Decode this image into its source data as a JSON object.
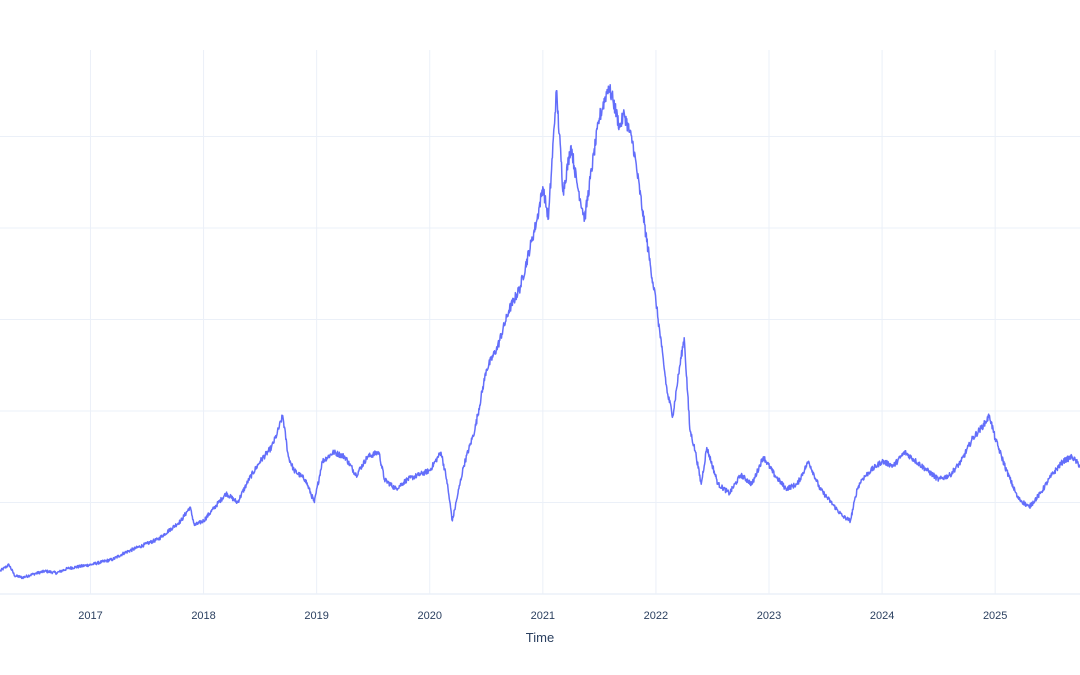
{
  "chart_data": {
    "type": "line",
    "title": "",
    "xlabel": "Time",
    "ylabel": "",
    "x_ticks": [
      "2017",
      "2018",
      "2019",
      "2020",
      "2021",
      "2022",
      "2023",
      "2024",
      "2025"
    ],
    "x_tick_years": [
      2017,
      2018,
      2019,
      2020,
      2021,
      2022,
      2023,
      2024,
      2025
    ],
    "xlim": [
      2016.2,
      2025.75
    ],
    "ylim": [
      0,
      6
    ],
    "y_gridlines": [
      1,
      2,
      3,
      4,
      5
    ],
    "grid": true,
    "legend": "none",
    "series": [
      {
        "color": "#636efa",
        "x": [
          2016.2,
          2016.28,
          2016.33,
          2016.4,
          2016.5,
          2016.6,
          2016.7,
          2016.8,
          2016.9,
          2017.0,
          2017.1,
          2017.2,
          2017.3,
          2017.4,
          2017.5,
          2017.6,
          2017.7,
          2017.8,
          2017.88,
          2017.92,
          2018.0,
          2018.1,
          2018.2,
          2018.3,
          2018.4,
          2018.5,
          2018.6,
          2018.65,
          2018.7,
          2018.75,
          2018.8,
          2018.9,
          2018.98,
          2019.05,
          2019.15,
          2019.25,
          2019.35,
          2019.45,
          2019.55,
          2019.6,
          2019.7,
          2019.8,
          2019.9,
          2020.0,
          2020.1,
          2020.15,
          2020.2,
          2020.25,
          2020.3,
          2020.4,
          2020.5,
          2020.6,
          2020.7,
          2020.8,
          2020.9,
          2020.95,
          2021.0,
          2021.05,
          2021.12,
          2021.18,
          2021.25,
          2021.3,
          2021.37,
          2021.45,
          2021.5,
          2021.58,
          2021.62,
          2021.68,
          2021.72,
          2021.8,
          2021.88,
          2021.95,
          2022.0,
          2022.05,
          2022.1,
          2022.15,
          2022.2,
          2022.25,
          2022.3,
          2022.35,
          2022.4,
          2022.45,
          2022.55,
          2022.65,
          2022.75,
          2022.85,
          2022.95,
          2023.05,
          2023.15,
          2023.25,
          2023.35,
          2023.45,
          2023.55,
          2023.65,
          2023.72,
          2023.78,
          2023.82,
          2023.9,
          2024.0,
          2024.1,
          2024.2,
          2024.3,
          2024.4,
          2024.5,
          2024.6,
          2024.7,
          2024.8,
          2024.9,
          2024.95,
          2025.0,
          2025.1,
          2025.2,
          2025.3,
          2025.4,
          2025.5,
          2025.6,
          2025.68,
          2025.75
        ],
        "y": [
          0.25,
          0.32,
          0.2,
          0.18,
          0.22,
          0.25,
          0.23,
          0.28,
          0.3,
          0.32,
          0.35,
          0.38,
          0.45,
          0.5,
          0.55,
          0.6,
          0.7,
          0.8,
          0.95,
          0.75,
          0.8,
          0.95,
          1.1,
          1.0,
          1.25,
          1.45,
          1.6,
          1.75,
          1.95,
          1.5,
          1.35,
          1.25,
          1.0,
          1.45,
          1.55,
          1.5,
          1.3,
          1.5,
          1.55,
          1.25,
          1.15,
          1.25,
          1.3,
          1.35,
          1.55,
          1.25,
          0.8,
          1.1,
          1.4,
          1.8,
          2.45,
          2.7,
          3.1,
          3.35,
          3.85,
          4.1,
          4.45,
          4.1,
          5.5,
          4.4,
          4.9,
          4.5,
          4.1,
          4.8,
          5.2,
          5.55,
          5.4,
          5.1,
          5.25,
          4.9,
          4.2,
          3.6,
          3.2,
          2.7,
          2.2,
          1.95,
          2.4,
          2.8,
          1.8,
          1.55,
          1.2,
          1.6,
          1.2,
          1.1,
          1.3,
          1.2,
          1.5,
          1.3,
          1.15,
          1.2,
          1.45,
          1.15,
          1.0,
          0.85,
          0.8,
          1.15,
          1.25,
          1.35,
          1.45,
          1.4,
          1.55,
          1.45,
          1.35,
          1.25,
          1.3,
          1.45,
          1.7,
          1.85,
          1.95,
          1.7,
          1.35,
          1.05,
          0.95,
          1.1,
          1.3,
          1.45,
          1.5,
          1.4
        ]
      }
    ]
  }
}
